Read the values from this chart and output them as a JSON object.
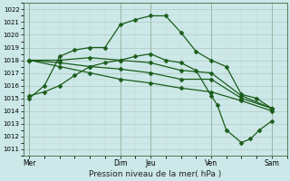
{
  "xlabel": "Pression niveau de la mer( hPa )",
  "ylim": [
    1010.5,
    1022.5
  ],
  "yticks": [
    1011,
    1012,
    1013,
    1014,
    1015,
    1016,
    1017,
    1018,
    1019,
    1020,
    1021,
    1022
  ],
  "xtick_labels": [
    "Mer",
    "Dim",
    "Jeu",
    "Ven",
    "Sam"
  ],
  "xtick_positions": [
    0,
    3,
    4,
    6,
    8
  ],
  "bg_color": "#cce8e8",
  "line_color": "#1a5c1a",
  "marker": "D",
  "markersize": 2.5,
  "linewidth": 0.9,
  "series": [
    {
      "x": [
        0,
        0.5,
        1,
        1.5,
        2,
        2.5,
        3,
        3.5,
        4,
        4.5,
        5,
        5.5,
        6,
        6.5,
        7,
        7.5,
        8
      ],
      "y": [
        1015.0,
        1016.0,
        1018.3,
        1018.8,
        1019.0,
        1019.0,
        1020.8,
        1021.2,
        1021.5,
        1021.5,
        1020.2,
        1018.7,
        1018.0,
        1017.5,
        1015.3,
        1015.0,
        1014.2
      ]
    },
    {
      "x": [
        0,
        1,
        2,
        3,
        4,
        5,
        6,
        7,
        8
      ],
      "y": [
        1018.0,
        1018.0,
        1018.2,
        1018.0,
        1017.8,
        1017.2,
        1017.0,
        1015.2,
        1014.2
      ]
    },
    {
      "x": [
        0,
        1,
        2,
        3,
        4,
        5,
        6,
        7,
        8
      ],
      "y": [
        1018.0,
        1017.8,
        1017.5,
        1017.3,
        1017.0,
        1016.5,
        1016.5,
        1015.0,
        1014.2
      ]
    },
    {
      "x": [
        0,
        1,
        2,
        3,
        4,
        5,
        6,
        7,
        8
      ],
      "y": [
        1018.0,
        1017.5,
        1017.0,
        1016.5,
        1016.2,
        1015.8,
        1015.5,
        1014.8,
        1014.0
      ]
    },
    {
      "x": [
        0,
        0.5,
        1,
        1.5,
        2,
        2.5,
        3,
        3.5,
        4,
        4.5,
        5,
        5.5,
        6,
        6.2,
        6.5,
        7,
        7.3,
        7.6,
        8
      ],
      "y": [
        1015.2,
        1015.5,
        1016.0,
        1016.8,
        1017.5,
        1017.8,
        1018.0,
        1018.3,
        1018.5,
        1018.0,
        1017.8,
        1017.2,
        1015.2,
        1014.5,
        1012.5,
        1011.5,
        1011.8,
        1012.5,
        1013.2
      ]
    }
  ],
  "vline_positions": [
    0,
    3,
    4,
    6,
    8
  ],
  "xlim": [
    -0.2,
    8.5
  ]
}
